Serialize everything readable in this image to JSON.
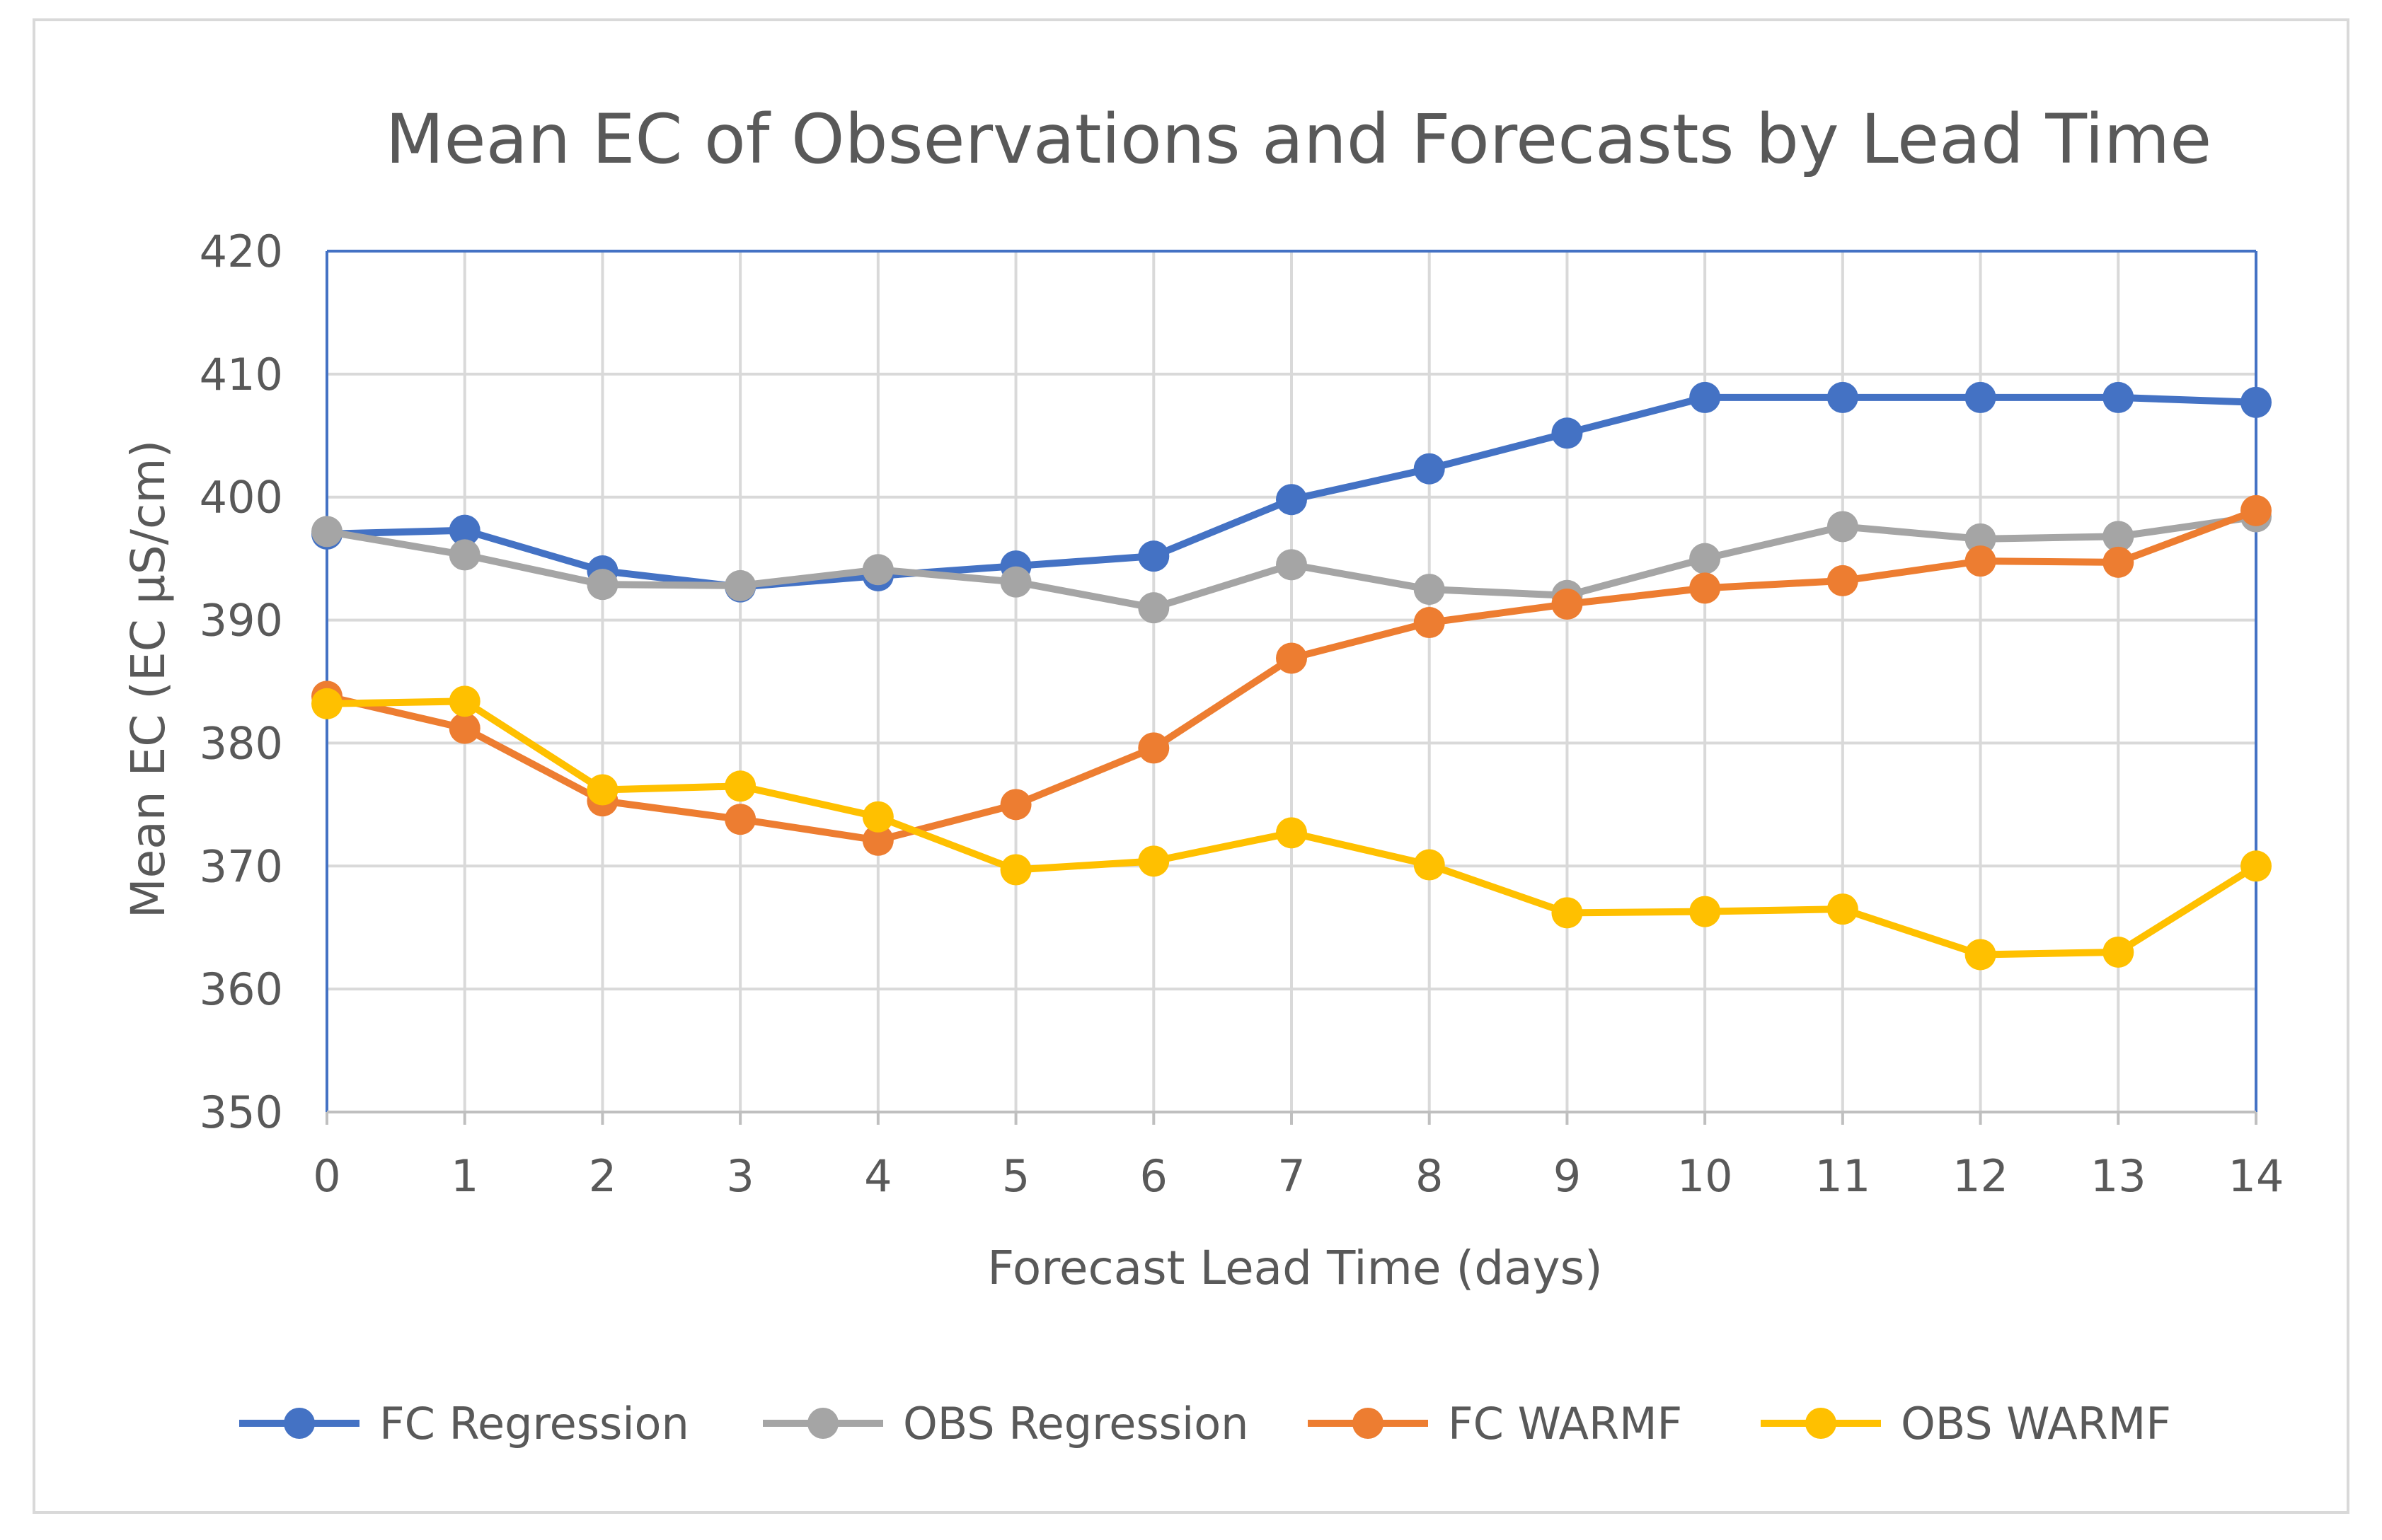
{
  "chart_data": {
    "type": "line",
    "title": "Mean EC of Observations and Forecasts by Lead Time",
    "xlabel": "Forecast Lead Time (days)",
    "ylabel": "Mean EC  (EC µS/cm)",
    "x": [
      0,
      1,
      2,
      3,
      4,
      5,
      6,
      7,
      8,
      9,
      10,
      11,
      12,
      13,
      14
    ],
    "x_tick_labels": [
      "0",
      "1",
      "2",
      "3",
      "4",
      "5",
      "6",
      "7",
      "8",
      "9",
      "10",
      "11",
      "12",
      "13",
      "14"
    ],
    "ylim": [
      350,
      420
    ],
    "y_ticks": [
      350,
      360,
      370,
      380,
      390,
      400,
      410,
      420
    ],
    "y_tick_labels": [
      "350",
      "360",
      "370",
      "380",
      "390",
      "400",
      "410",
      "420"
    ],
    "grid": true,
    "legend_position": "bottom",
    "series": [
      {
        "name": "FC Regression",
        "color": "#4472C4",
        "values": [
          397.0,
          397.3,
          394.0,
          392.7,
          393.6,
          394.4,
          395.2,
          399.8,
          402.3,
          405.2,
          408.1,
          408.1,
          408.1,
          408.1,
          407.7
        ]
      },
      {
        "name": "OBS Regression",
        "color": "#A5A5A5",
        "values": [
          397.2,
          395.3,
          392.9,
          392.8,
          394.1,
          393.1,
          391.0,
          394.5,
          392.5,
          392.0,
          395.0,
          397.6,
          396.6,
          396.8,
          398.4
        ]
      },
      {
        "name": "FC WARMF",
        "color": "#ED7D31",
        "values": [
          383.8,
          381.2,
          375.3,
          373.8,
          372.1,
          375.0,
          379.6,
          386.9,
          389.8,
          391.3,
          392.6,
          393.2,
          394.8,
          394.7,
          398.9
        ]
      },
      {
        "name": "OBS WARMF",
        "color": "#FFC000",
        "values": [
          383.2,
          383.4,
          376.2,
          376.5,
          374.0,
          369.7,
          370.4,
          372.7,
          370.1,
          366.2,
          366.3,
          366.5,
          362.8,
          363.0,
          370.0
        ]
      }
    ]
  }
}
